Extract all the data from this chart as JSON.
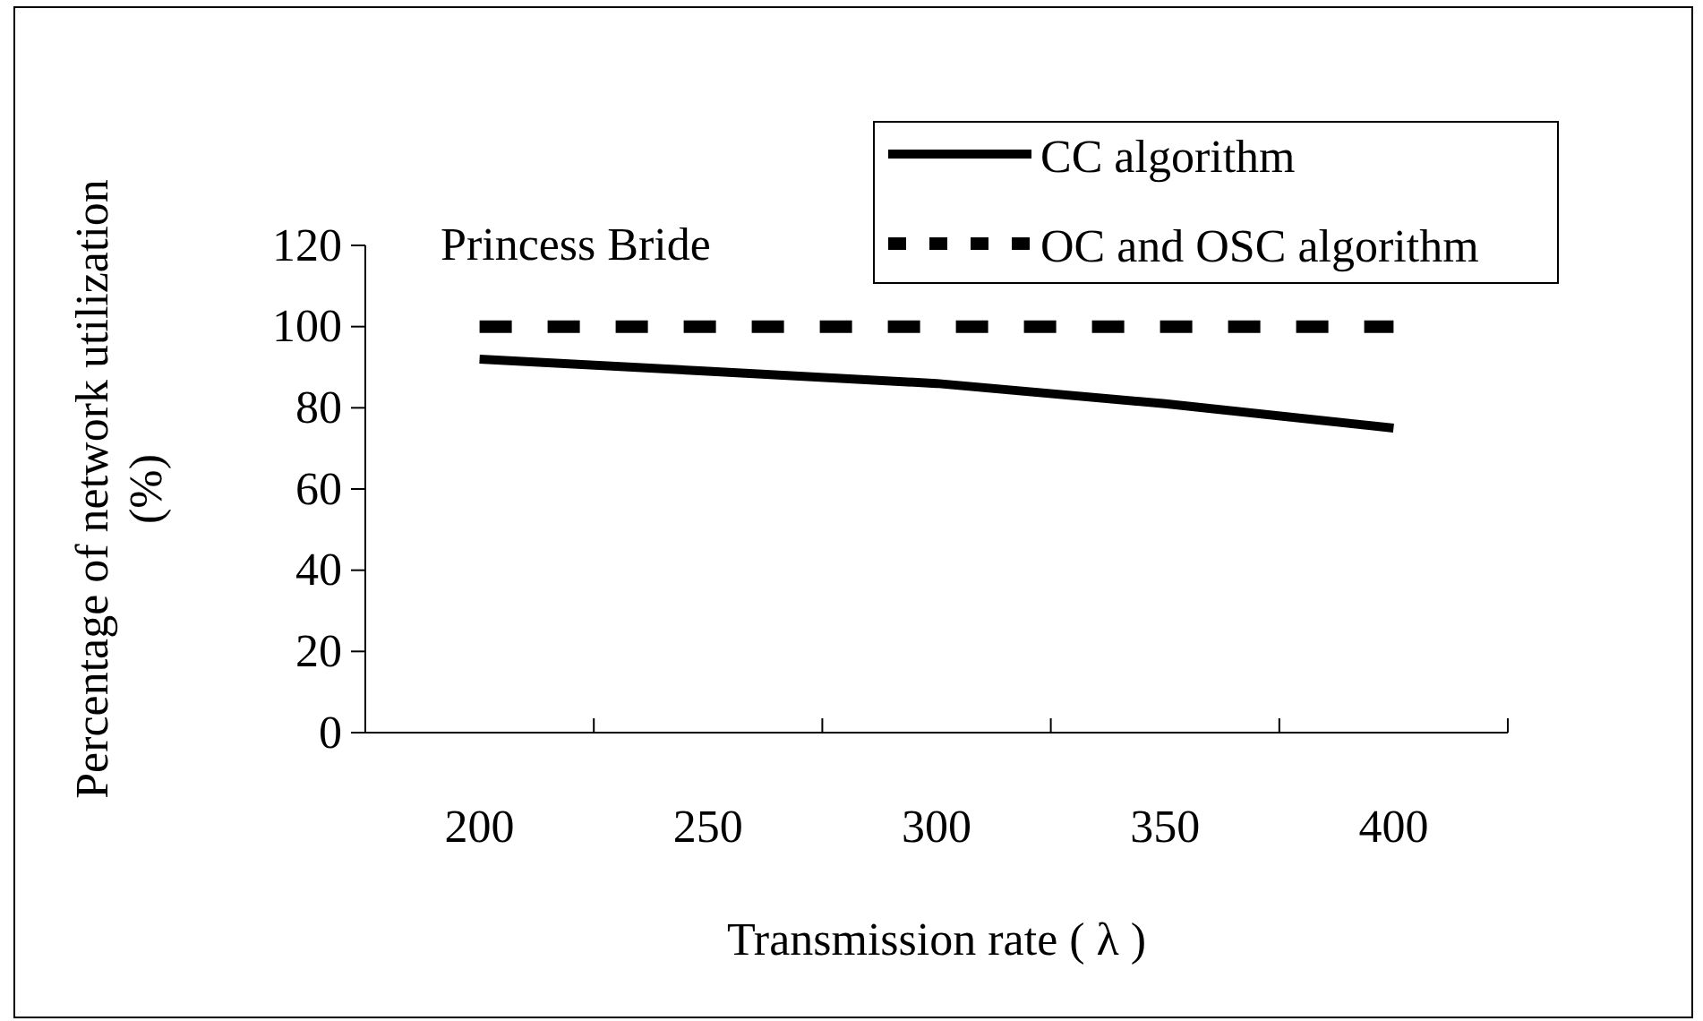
{
  "chart_data": {
    "type": "line",
    "xlabel": "Transmission rate ( λ )",
    "ylabel": "Percentage of network utilization (%)",
    "categories": [
      "200",
      "250",
      "300",
      "350",
      "400"
    ],
    "series": [
      {
        "name": "CC algorithm",
        "color": "#000000",
        "line_style": "solid",
        "values": [
          92,
          89,
          86,
          81,
          75
        ]
      },
      {
        "name": "OC and OSC algorithm",
        "color": "#000000",
        "line_style": "dashed",
        "values": [
          100,
          100,
          100,
          100,
          100
        ]
      }
    ],
    "ylim": [
      0,
      120
    ],
    "yticks": [
      0,
      20,
      40,
      60,
      80,
      100,
      120
    ],
    "grid": false,
    "legend": "top right",
    "marker": "none",
    "annotations": [
      "Princess Bride"
    ]
  }
}
